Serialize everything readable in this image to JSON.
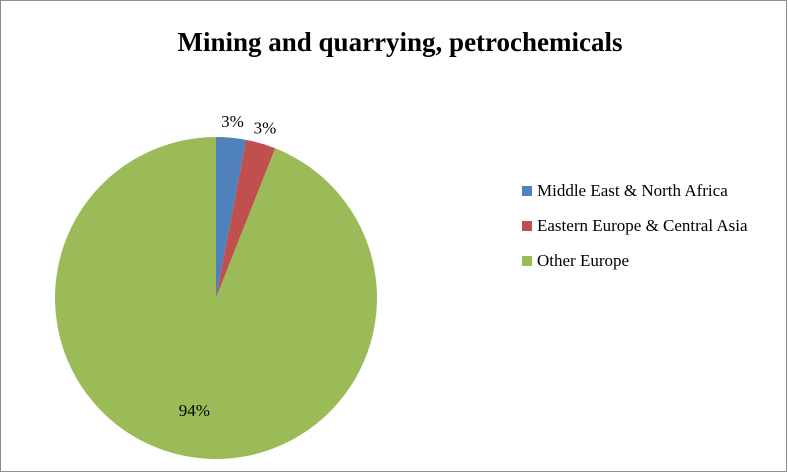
{
  "chart_data": {
    "type": "pie",
    "title": "Mining and quarrying, petrochemicals",
    "categories": [
      "Middle East & North Africa",
      "Eastern Europe & Central Asia",
      "Other Europe"
    ],
    "values": [
      3,
      3,
      94
    ],
    "value_labels": [
      "3%",
      "3%",
      "94%"
    ],
    "colors": [
      "#4f81bd",
      "#c0504d",
      "#9bbb59"
    ],
    "legend": "right"
  }
}
